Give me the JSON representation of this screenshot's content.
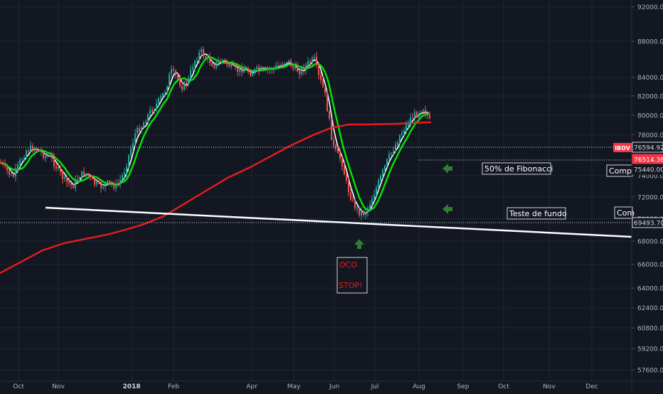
{
  "chart_data": {
    "type": "candlestick",
    "symbol": "IBOV",
    "x_ticks": [
      "Oct",
      "Nov",
      "2018",
      "Feb",
      "Apr",
      "May",
      "Jun",
      "Jul",
      "Aug",
      "Sep",
      "Oct",
      "Nov",
      "Dec"
    ],
    "y_ticks": [
      "92000.00",
      "88000.00",
      "84000.00",
      "82000.00",
      "80000.00",
      "78000.00",
      "74000.00",
      "72000.00",
      "70000.00",
      "68000.00",
      "66000.00",
      "64000.00",
      "62400.00",
      "60800.00",
      "59200.00",
      "57600.00"
    ],
    "y_range": [
      56800,
      93000
    ],
    "y_scale": "log",
    "price_tags": [
      {
        "label": "76594.92",
        "color": "#131722",
        "text_color": "#d1d4dc",
        "border": "#d1d4dc"
      },
      {
        "label": "76514.36",
        "color": "#f23645",
        "text_color": "#ffffff",
        "border": "#f23645"
      },
      {
        "label": "75440.00",
        "color": "#131722",
        "text_color": "#d1d4dc",
        "border": "#131722"
      },
      {
        "label": "69493.70",
        "color": "#131722",
        "text_color": "#d1d4dc",
        "border": "#d1d4dc"
      }
    ],
    "annotations": [
      {
        "text": "50% de Fibonacci"
      },
      {
        "text": "Teste de fundo"
      },
      {
        "text": "Compr"
      },
      {
        "text": "Com"
      },
      {
        "text": "OCO"
      },
      {
        "text": "STOP!"
      }
    ],
    "series_visual": [
      {
        "color": "#ffffff",
        "label": ""
      },
      {
        "color": "#00e600",
        "label": ""
      },
      {
        "color": "#e81d1d",
        "label": ""
      }
    ],
    "colors": {
      "bg": "#131722",
      "grid": "#1f2433",
      "up": "#26a69a",
      "down": "#ef5350",
      "text": "#b2b5be",
      "arrow": "#2e7d32"
    }
  }
}
